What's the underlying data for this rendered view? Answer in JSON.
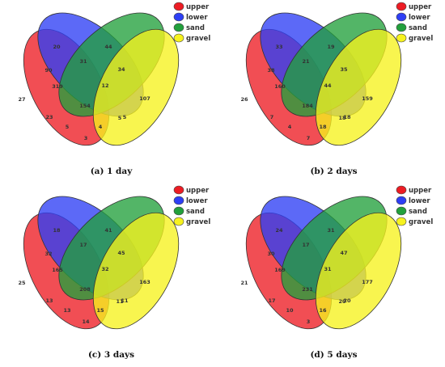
{
  "legend": [
    {
      "label": "upper",
      "color": "#ed1c24"
    },
    {
      "label": "lower",
      "color": "#2e3ff5"
    },
    {
      "label": "sand",
      "color": "#22a03c"
    },
    {
      "label": "gravel",
      "color": "#f6f21e"
    }
  ],
  "panels": [
    {
      "caption": "(a) 1 day",
      "values": {
        "upper_only": "27",
        "lower_only": "20",
        "sand_only": "44",
        "gravel_only": "107",
        "upper_lower": "90",
        "lower_sand": "31",
        "sand_gravel": "34",
        "upper_gravel": "3",
        "upper_lower_sand": "319",
        "lower_sand_gravel": "12",
        "upper_lower_gravel": "23",
        "upper_sand_gravel": "5",
        "upper_lower_sand_gravel": "154",
        "a": "5",
        "b": "4",
        "c": "5"
      }
    },
    {
      "caption": "(b) 2 days",
      "values": {
        "upper_only": "26",
        "lower_only": "33",
        "sand_only": "19",
        "gravel_only": "159",
        "upper_lower": "38",
        "lower_sand": "21",
        "sand_gravel": "35",
        "upper_gravel": "7",
        "upper_lower_sand": "160",
        "lower_sand_gravel": "44",
        "upper_lower_gravel": "7",
        "upper_sand_gravel": "18",
        "upper_lower_sand_gravel": "184",
        "a": "4",
        "b": "18",
        "c": "18"
      }
    },
    {
      "caption": "(c) 3 days",
      "values": {
        "upper_only": "25",
        "lower_only": "18",
        "sand_only": "41",
        "gravel_only": "163",
        "upper_lower": "32",
        "lower_sand": "17",
        "sand_gravel": "45",
        "upper_gravel": "14",
        "upper_lower_sand": "165",
        "lower_sand_gravel": "32",
        "upper_lower_gravel": "13",
        "upper_sand_gravel": "11",
        "upper_lower_sand_gravel": "208",
        "a": "13",
        "b": "15",
        "c": "11"
      }
    },
    {
      "caption": "(d) 5 days",
      "values": {
        "upper_only": "21",
        "lower_only": "24",
        "sand_only": "31",
        "gravel_only": "177",
        "upper_lower": "30",
        "lower_sand": "17",
        "sand_gravel": "47",
        "upper_gravel": "3",
        "upper_lower_sand": "169",
        "lower_sand_gravel": "31",
        "upper_lower_gravel": "17",
        "upper_sand_gravel": "20",
        "upper_lower_sand_gravel": "231",
        "a": "10",
        "b": "16",
        "c": "20"
      }
    }
  ]
}
